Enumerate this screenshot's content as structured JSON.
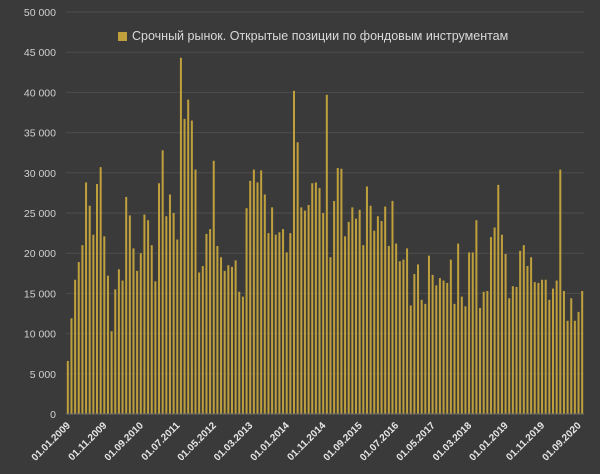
{
  "chart_data": {
    "type": "bar",
    "ylim": [
      0,
      50000
    ],
    "y_ticks": [
      "0",
      "5 000",
      "10 000",
      "15 000",
      "20 000",
      "25 000",
      "30 000",
      "35 000",
      "40 000",
      "45 000",
      "50 000"
    ],
    "x_tick_labels": [
      "01.01.2009",
      "01.11.2009",
      "01.09.2010",
      "01.07.2011",
      "01.05.2012",
      "01.03.2013",
      "01.01.2014",
      "01.11.2014",
      "01.09.2015",
      "01.07.2016",
      "01.05.2017",
      "01.03.2018",
      "01.01.2019",
      "01.11.2019",
      "01.09.2020"
    ],
    "x_tick_indices": [
      0,
      10,
      20,
      30,
      40,
      50,
      60,
      70,
      80,
      90,
      100,
      110,
      120,
      130,
      140
    ],
    "grid": true,
    "legend_position": "top",
    "series": [
      {
        "name": "Срочный рынок. Открытые позиции по фондовым инструментам",
        "color": "#bfa03c",
        "values": [
          6600,
          11900,
          16700,
          18900,
          21000,
          28800,
          25900,
          22300,
          28600,
          30700,
          22100,
          17200,
          10300,
          15500,
          18000,
          16600,
          27000,
          24700,
          20600,
          17800,
          20000,
          24800,
          24100,
          21000,
          16500,
          28700,
          32800,
          24600,
          27300,
          25000,
          21700,
          44300,
          36700,
          39100,
          36500,
          30400,
          17600,
          18400,
          22400,
          23000,
          31500,
          20900,
          19500,
          17800,
          18500,
          18300,
          19100,
          15200,
          14600,
          25600,
          29000,
          30400,
          28800,
          30300,
          27300,
          22500,
          25700,
          22300,
          22600,
          23000,
          20100,
          22500,
          40200,
          33800,
          25700,
          25300,
          26000,
          28700,
          28800,
          28100,
          25000,
          39700,
          19500,
          26500,
          30600,
          30500,
          22100,
          23900,
          25700,
          24300,
          25400,
          21000,
          28300,
          25900,
          22800,
          24600,
          24000,
          25800,
          20900,
          26500,
          21200,
          19000,
          19200,
          20600,
          13500,
          17400,
          18600,
          14200,
          13700,
          19700,
          17300,
          16000,
          16900,
          16600,
          16300,
          19200,
          13700,
          21200,
          14600,
          13400,
          20100,
          20100,
          24100,
          13200,
          15200,
          15300,
          22000,
          23200,
          28500,
          22300,
          19900,
          14400,
          15900,
          15800,
          20300,
          21000,
          18400,
          19500,
          16400,
          16300,
          16700,
          16700,
          14200,
          15600,
          16600,
          30400,
          15300,
          11600,
          14400,
          11600,
          12700,
          15300
        ]
      }
    ]
  }
}
